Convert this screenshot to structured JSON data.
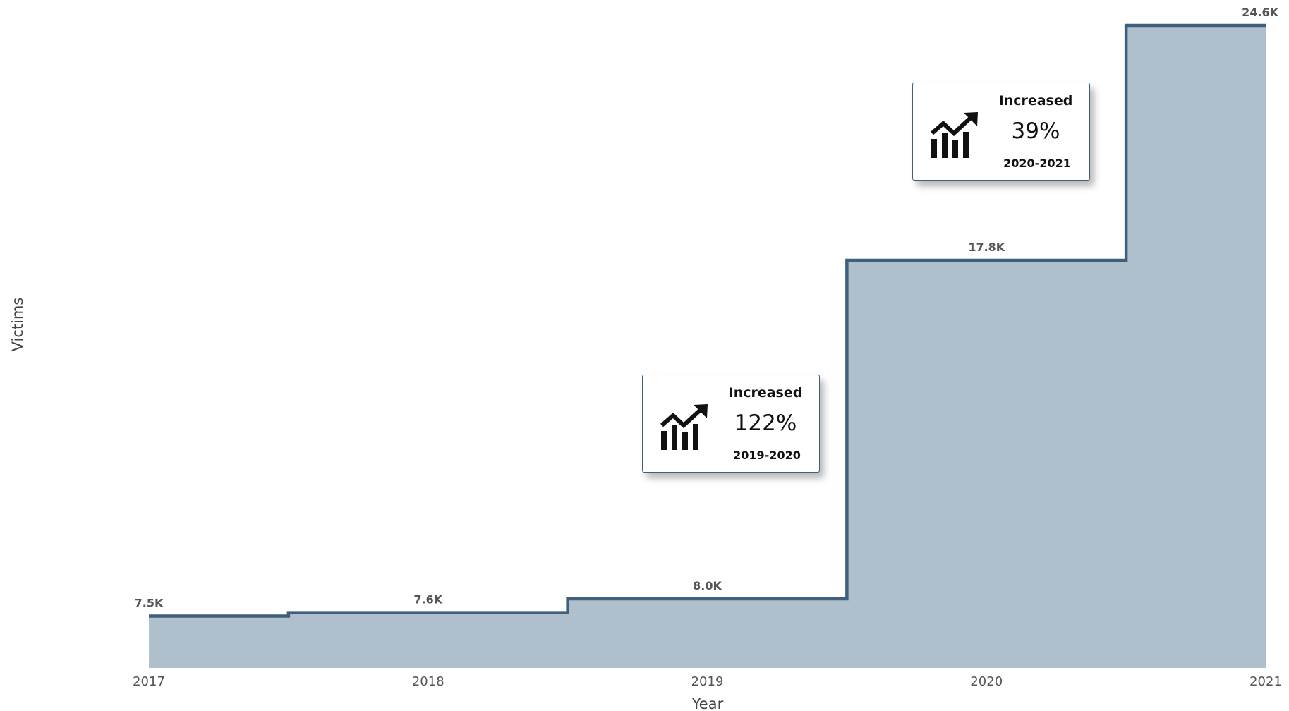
{
  "chart_data": {
    "type": "line",
    "step": true,
    "area": true,
    "categories": [
      "2017",
      "2018",
      "2019",
      "2020",
      "2021"
    ],
    "x": [
      2017,
      2018,
      2019,
      2020,
      2021
    ],
    "values": [
      7500,
      7600,
      8000,
      17800,
      24600
    ],
    "data_labels": [
      "7.5K",
      "7.6K",
      "8.0K",
      "17.8K",
      "24.6K"
    ],
    "xlabel": "Year",
    "ylabel": "Victims",
    "ylim": [
      6000,
      24600
    ],
    "grid": false,
    "line_color": "#3f5f7d",
    "fill_color": "#b0bfcc",
    "annotations": [
      {
        "title": "Increased",
        "value": "122%",
        "period": "2019-2020",
        "icon": "chart-increase-icon"
      },
      {
        "title": "Increased",
        "value": "39%",
        "period": "2020-2021",
        "icon": "chart-increase-icon"
      }
    ]
  }
}
